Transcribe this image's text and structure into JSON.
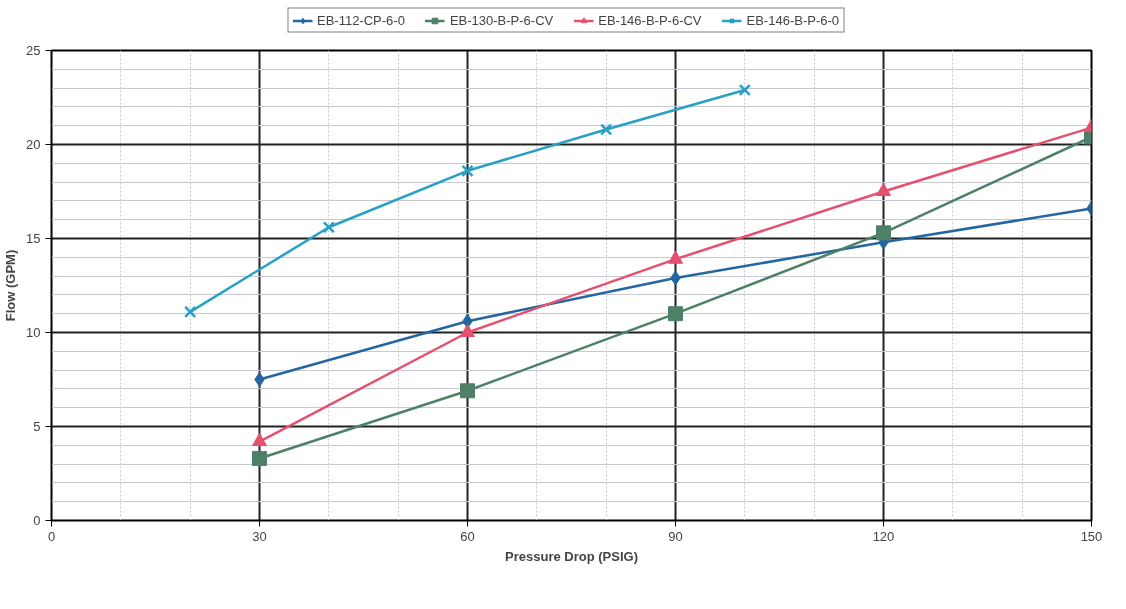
{
  "chart_data": {
    "type": "line",
    "xlabel": "Pressure Drop (PSIG)",
    "ylabel": "Flow (GPM)",
    "xlim": [
      0,
      150
    ],
    "xticks": [
      0,
      30,
      60,
      90,
      120,
      150
    ],
    "ylim": [
      0,
      25
    ],
    "yticks": [
      0,
      5,
      10,
      15,
      20,
      25
    ],
    "grid": true,
    "legend": "top",
    "series": [
      {
        "name": "EB-112-CP-6-0",
        "color": "#2366a0",
        "marker": "diamond",
        "x": [
          30,
          60,
          90,
          120,
          150
        ],
        "values": [
          7.5,
          10.6,
          12.9,
          14.8,
          16.6
        ]
      },
      {
        "name": "EB-130-B-P-6-CV",
        "color": "#4e8068",
        "marker": "square",
        "x": [
          30,
          60,
          90,
          120,
          150
        ],
        "values": [
          3.3,
          6.9,
          11.0,
          15.3,
          20.4
        ]
      },
      {
        "name": "EB-146-B-P-6-CV",
        "color": "#e5506e",
        "marker": "triangle",
        "x": [
          30,
          60,
          90,
          120,
          150
        ],
        "values": [
          4.2,
          10.0,
          13.9,
          17.5,
          20.9
        ]
      },
      {
        "name": "EB-146-B-P-6-0",
        "color": "#26a0c4",
        "marker": "cross",
        "x": [
          20,
          40,
          60,
          80,
          100
        ],
        "values": [
          11.1,
          15.6,
          18.6,
          20.8,
          22.9
        ]
      }
    ]
  }
}
